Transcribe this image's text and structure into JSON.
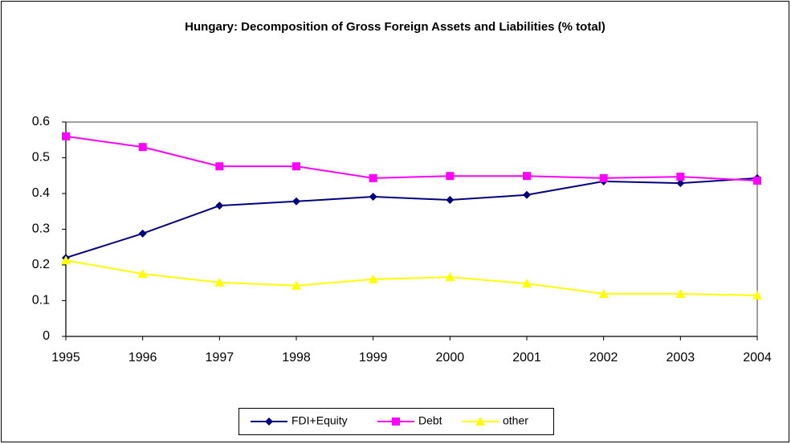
{
  "chart_data": {
    "type": "line",
    "title": "Hungary: Decomposition of Gross Foreign Assets and Liabilities (% total)",
    "x": [
      1995,
      1996,
      1997,
      1998,
      1999,
      2000,
      2001,
      2002,
      2003,
      2004
    ],
    "xlim": [
      1995,
      2004
    ],
    "xticks": [
      1995,
      1996,
      1997,
      1998,
      1999,
      2000,
      2001,
      2002,
      2003,
      2004
    ],
    "ylim": [
      0,
      0.6
    ],
    "yticks": [
      0,
      0.1,
      0.2,
      0.3,
      0.4,
      0.5,
      0.6
    ],
    "grid": false,
    "legend": "bottom",
    "series": [
      {
        "name": "FDI+Equity",
        "color": "#000080",
        "marker": "diamond",
        "values": [
          0.22,
          0.288,
          0.366,
          0.378,
          0.391,
          0.382,
          0.396,
          0.434,
          0.429,
          0.443
        ]
      },
      {
        "name": "Debt",
        "color": "#ff00ff",
        "marker": "square",
        "values": [
          0.56,
          0.53,
          0.476,
          0.476,
          0.443,
          0.449,
          0.449,
          0.443,
          0.447,
          0.436
        ]
      },
      {
        "name": "other",
        "color": "#ffff00",
        "marker": "triangle",
        "values": [
          0.213,
          0.175,
          0.151,
          0.142,
          0.16,
          0.166,
          0.148,
          0.119,
          0.119,
          0.115
        ]
      }
    ]
  }
}
